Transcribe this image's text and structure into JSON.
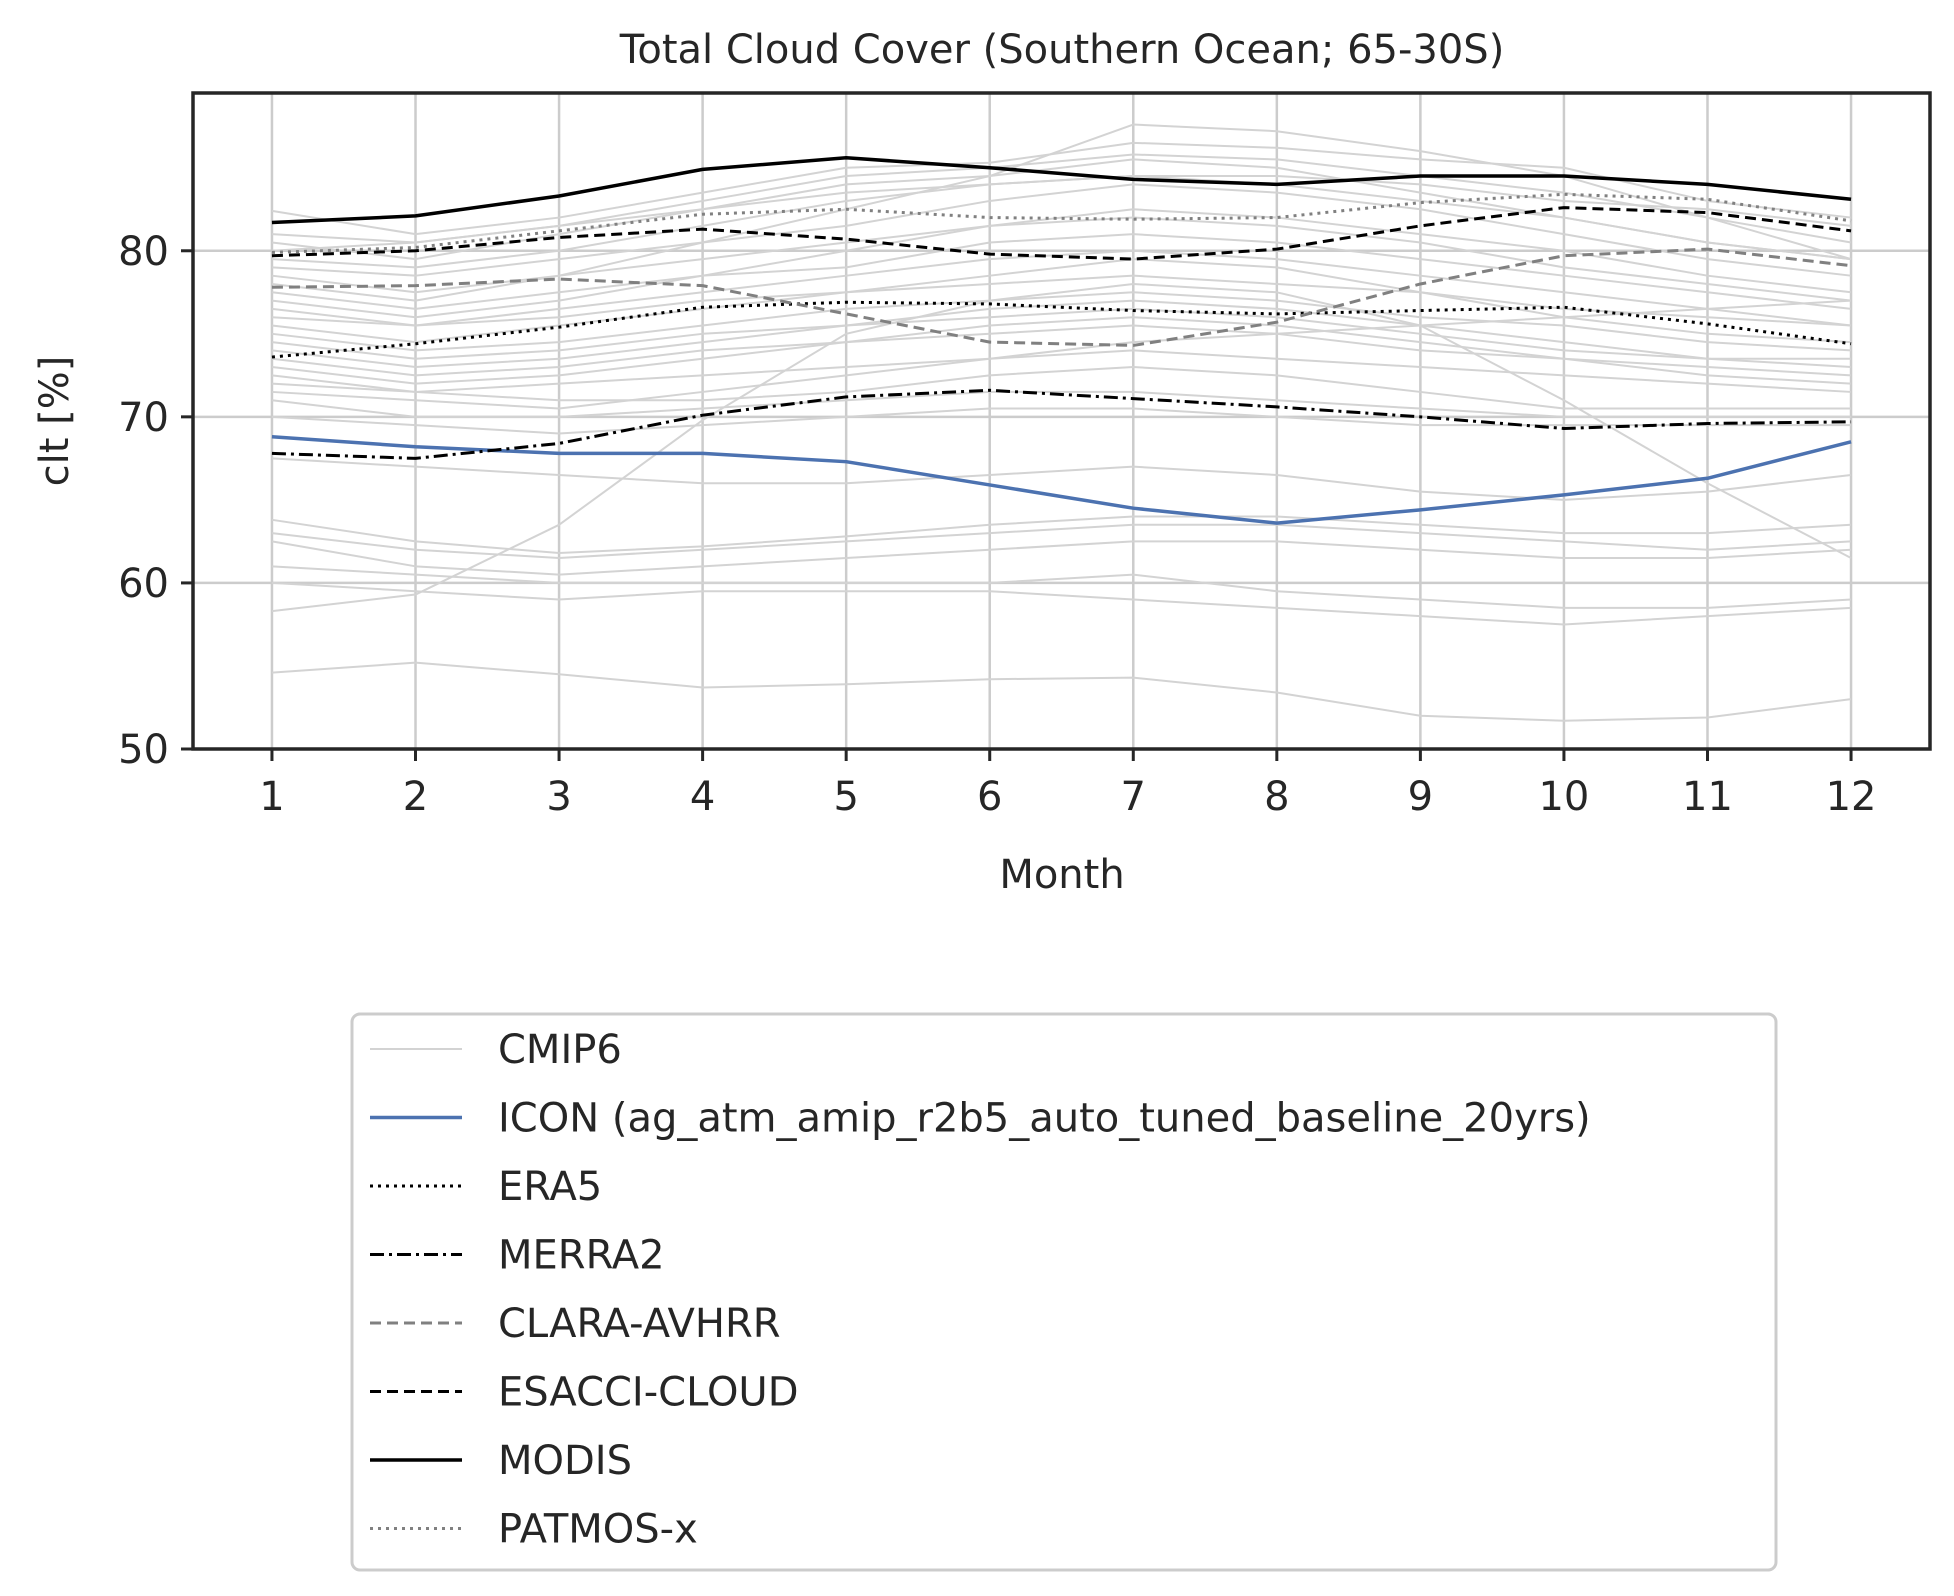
{
  "chart_data": {
    "type": "line",
    "title": "Total Cloud Cover (Southern Ocean; 65-30S)",
    "xlabel": "Month",
    "ylabel": "clt [%]",
    "x": [
      1,
      2,
      3,
      4,
      5,
      6,
      7,
      8,
      9,
      10,
      11,
      12
    ],
    "xlim": [
      0.45,
      12.55
    ],
    "ylim": [
      50,
      89.5
    ],
    "yticks": [
      50,
      60,
      70,
      80
    ],
    "grid": true,
    "legend_position": "below",
    "series": [
      {
        "name": "ICON (ag_atm_amip_r2b5_auto_tuned_baseline_20yrs)",
        "color": "#4c72b0",
        "dash": "solid",
        "values": [
          68.8,
          68.2,
          67.8,
          67.8,
          67.3,
          65.9,
          64.5,
          63.6,
          64.4,
          65.3,
          66.3,
          68.5
        ]
      },
      {
        "name": "ERA5",
        "color": "#000000",
        "dash": "dotted",
        "values": [
          73.6,
          74.4,
          75.4,
          76.6,
          76.9,
          76.8,
          76.4,
          76.2,
          76.4,
          76.6,
          75.6,
          74.4
        ]
      },
      {
        "name": "MERRA2",
        "color": "#000000",
        "dash": "dashdot",
        "values": [
          67.8,
          67.5,
          68.4,
          70.1,
          71.2,
          71.6,
          71.1,
          70.6,
          70.0,
          69.3,
          69.6,
          69.7
        ]
      },
      {
        "name": "CLARA-AVHRR",
        "color": "#808080",
        "dash": "dashed",
        "values": [
          77.8,
          77.9,
          78.3,
          77.9,
          76.2,
          74.5,
          74.3,
          75.7,
          78.0,
          79.7,
          80.1,
          79.1
        ]
      },
      {
        "name": "ESACCI-CLOUD",
        "color": "#000000",
        "dash": "dashed",
        "values": [
          79.7,
          80.0,
          80.8,
          81.3,
          80.7,
          79.8,
          79.5,
          80.1,
          81.5,
          82.6,
          82.3,
          81.2
        ]
      },
      {
        "name": "MODIS",
        "color": "#000000",
        "dash": "solid",
        "values": [
          81.7,
          82.1,
          83.3,
          84.9,
          85.6,
          85.0,
          84.3,
          84.0,
          84.5,
          84.5,
          84.0,
          83.1
        ]
      },
      {
        "name": "PATMOS-x",
        "color": "#808080",
        "dash": "dotted",
        "values": [
          79.9,
          80.2,
          81.2,
          82.2,
          82.5,
          82.0,
          81.9,
          82.0,
          82.9,
          83.4,
          83.1,
          81.8
        ]
      }
    ],
    "ensemble": {
      "name": "CMIP6",
      "color": "#d3d3d3",
      "members": [
        [
          82.4,
          81.0,
          82.0,
          83.5,
          85.0,
          85.3,
          86.5,
          86.2,
          85.5,
          85.0,
          83.0,
          82.0
        ],
        [
          81.0,
          80.5,
          81.5,
          83.0,
          84.5,
          85.0,
          85.8,
          85.5,
          84.5,
          83.5,
          82.0,
          80.5
        ],
        [
          80.5,
          79.5,
          81.0,
          82.5,
          84.0,
          84.5,
          85.5,
          85.0,
          83.5,
          82.0,
          80.5,
          79.5
        ],
        [
          80.0,
          80.5,
          81.5,
          82.5,
          83.5,
          84.0,
          84.5,
          84.5,
          84.0,
          83.0,
          82.5,
          81.5
        ],
        [
          79.5,
          79.0,
          80.0,
          81.5,
          83.0,
          84.0,
          84.5,
          84.0,
          83.0,
          82.0,
          80.5,
          79.5
        ],
        [
          79.0,
          78.5,
          79.5,
          80.5,
          81.5,
          83.0,
          84.0,
          83.5,
          82.5,
          81.0,
          79.5,
          78.5
        ],
        [
          78.5,
          77.5,
          78.5,
          80.5,
          82.5,
          84.5,
          87.6,
          87.2,
          86.0,
          84.5,
          82.0,
          79.5
        ],
        [
          78.0,
          77.0,
          78.5,
          79.5,
          80.5,
          81.5,
          82.5,
          82.0,
          81.0,
          80.0,
          78.5,
          77.5
        ],
        [
          77.5,
          76.5,
          77.5,
          78.5,
          79.0,
          80.5,
          81.0,
          80.5,
          79.5,
          78.5,
          77.5,
          76.5
        ],
        [
          77.0,
          76.0,
          77.0,
          78.5,
          80.0,
          81.5,
          82.0,
          81.5,
          80.5,
          79.0,
          78.0,
          77.0
        ],
        [
          76.5,
          75.5,
          76.5,
          77.5,
          78.5,
          79.5,
          80.0,
          79.5,
          78.5,
          77.5,
          76.5,
          75.5
        ],
        [
          76.0,
          75.5,
          76.0,
          77.0,
          77.5,
          78.0,
          78.5,
          78.0,
          77.5,
          76.5,
          76.0,
          75.5
        ],
        [
          75.5,
          74.5,
          75.5,
          76.5,
          77.5,
          78.5,
          79.5,
          79.0,
          77.5,
          76.0,
          75.0,
          74.5
        ],
        [
          75.0,
          74.0,
          74.5,
          75.5,
          76.5,
          77.0,
          77.5,
          77.0,
          76.0,
          75.5,
          74.5,
          74.0
        ],
        [
          74.5,
          73.5,
          74.0,
          75.0,
          75.5,
          76.0,
          76.5,
          76.0,
          75.0,
          74.0,
          73.5,
          73.0
        ],
        [
          74.0,
          73.0,
          73.5,
          74.5,
          75.5,
          76.5,
          77.0,
          76.5,
          75.5,
          74.5,
          73.5,
          73.5
        ],
        [
          73.5,
          72.5,
          73.0,
          74.0,
          74.5,
          75.0,
          75.5,
          75.0,
          74.0,
          73.5,
          73.0,
          72.5
        ],
        [
          73.0,
          72.0,
          72.5,
          73.5,
          74.5,
          75.5,
          76.0,
          75.5,
          74.5,
          73.5,
          72.5,
          72.0
        ],
        [
          72.5,
          71.5,
          72.0,
          72.5,
          73.0,
          73.5,
          74.0,
          73.5,
          73.0,
          72.5,
          72.0,
          71.5
        ],
        [
          72.0,
          71.5,
          71.0,
          71.0,
          71.5,
          72.5,
          73.0,
          72.5,
          71.5,
          70.5,
          70.5,
          70.5
        ],
        [
          71.5,
          71.0,
          70.5,
          71.5,
          72.5,
          73.5,
          74.5,
          75.0,
          75.5,
          76.0,
          76.5,
          77.0
        ],
        [
          71.0,
          70.0,
          70.0,
          70.5,
          71.0,
          71.5,
          71.5,
          71.0,
          70.5,
          70.0,
          70.0,
          70.0
        ],
        [
          70.0,
          69.5,
          69.0,
          69.5,
          70.0,
          70.5,
          70.5,
          70.0,
          69.5,
          69.5,
          69.5,
          69.5
        ],
        [
          67.5,
          67.0,
          66.5,
          66.0,
          66.0,
          66.5,
          67.0,
          66.5,
          65.5,
          65.0,
          65.5,
          66.5
        ],
        [
          63.8,
          62.5,
          61.8,
          62.2,
          62.8,
          63.5,
          64.0,
          64.0,
          63.5,
          63.0,
          63.0,
          63.5
        ],
        [
          63.0,
          62.0,
          61.5,
          62.0,
          62.5,
          63.0,
          63.5,
          63.5,
          63.0,
          62.5,
          62.0,
          62.5
        ],
        [
          62.5,
          61.0,
          60.5,
          61.0,
          61.5,
          62.0,
          62.5,
          62.5,
          62.0,
          61.5,
          61.5,
          62.0
        ],
        [
          61.0,
          60.5,
          60.0,
          60.0,
          60.0,
          60.0,
          60.5,
          59.5,
          59.0,
          58.5,
          58.5,
          59.0
        ],
        [
          60.0,
          59.5,
          59.0,
          59.5,
          59.5,
          59.5,
          59.0,
          58.5,
          58.0,
          57.5,
          58.0,
          58.5
        ],
        [
          58.3,
          59.3,
          63.5,
          69.8,
          75.0,
          77.0,
          78.0,
          77.5,
          75.5,
          71.0,
          66.0,
          61.5
        ],
        [
          54.6,
          55.2,
          54.5,
          53.7,
          53.9,
          54.2,
          54.3,
          53.4,
          52.0,
          51.7,
          51.9,
          53.0
        ]
      ]
    }
  }
}
